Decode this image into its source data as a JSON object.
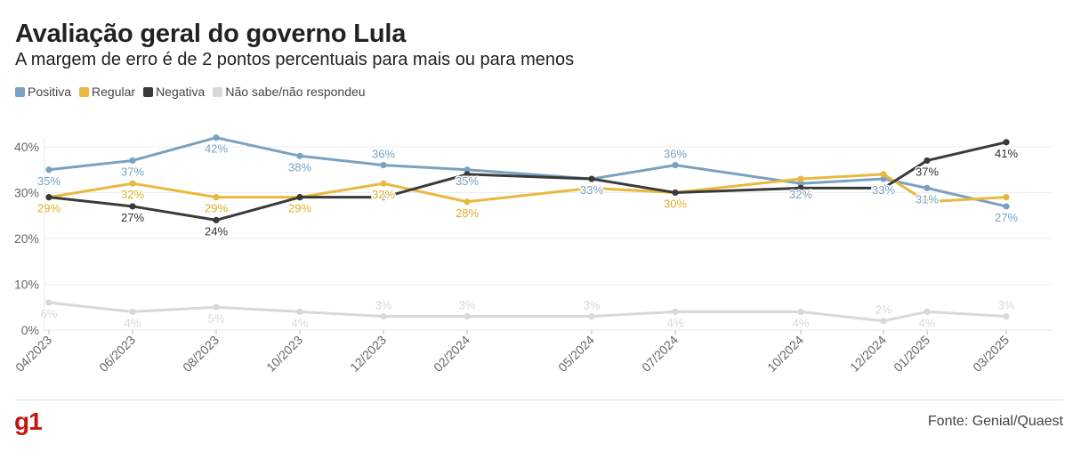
{
  "header": {
    "title": "Avaliação geral do governo Lula",
    "subtitle": "A margem de erro é de 2 pontos percentuais para mais ou para menos"
  },
  "footer": {
    "logo": "g1",
    "source": "Fonte: Genial/Quaest"
  },
  "chart_data": {
    "type": "line",
    "title": "Avaliação geral do governo Lula",
    "subtitle": "A margem de erro é de 2 pontos percentuais para mais ou para menos",
    "xlabel": "",
    "ylabel": "",
    "categories": [
      "04/2023",
      "06/2023",
      "08/2023",
      "10/2023",
      "12/2023",
      "02/2024",
      "05/2024",
      "07/2024",
      "10/2024",
      "12/2024",
      "01/2025",
      "03/2025"
    ],
    "ylim": [
      0,
      40
    ],
    "yticks": [
      "0%",
      "10%",
      "20%",
      "30%",
      "40%"
    ],
    "grid": true,
    "legend_position": "top-left",
    "series": [
      {
        "name": "Positiva",
        "color": "#7aa1bf",
        "values": [
          35,
          37,
          42,
          38,
          36,
          35,
          33,
          36,
          32,
          33,
          31,
          27
        ]
      },
      {
        "name": "Regular",
        "color": "#e8b93e",
        "values": [
          29,
          32,
          29,
          29,
          32,
          28,
          31,
          30,
          33,
          34,
          28,
          29
        ]
      },
      {
        "name": "Negativa",
        "color": "#3a3a3a",
        "values": [
          29,
          27,
          24,
          29,
          29,
          34,
          33,
          30,
          31,
          31,
          37,
          41
        ]
      },
      {
        "name": "Não sabe/não respondeu",
        "color": "#d8d8d8",
        "values": [
          6,
          4,
          5,
          4,
          3,
          3,
          3,
          4,
          4,
          2,
          4,
          3
        ]
      }
    ],
    "data_labels": [
      {
        "series": 0,
        "index": 0,
        "text": "35%",
        "pos": "below"
      },
      {
        "series": 0,
        "index": 1,
        "text": "37%",
        "pos": "below"
      },
      {
        "series": 0,
        "index": 2,
        "text": "42%",
        "pos": "below"
      },
      {
        "series": 0,
        "index": 3,
        "text": "38%",
        "pos": "below"
      },
      {
        "series": 0,
        "index": 4,
        "text": "36%",
        "pos": "above"
      },
      {
        "series": 0,
        "index": 5,
        "text": "35%",
        "pos": "below"
      },
      {
        "series": 0,
        "index": 6,
        "text": "33%",
        "pos": "below"
      },
      {
        "series": 0,
        "index": 7,
        "text": "36%",
        "pos": "above"
      },
      {
        "series": 0,
        "index": 8,
        "text": "32%",
        "pos": "below"
      },
      {
        "series": 0,
        "index": 9,
        "text": "33%",
        "pos": "below"
      },
      {
        "series": 0,
        "index": 10,
        "text": "31%",
        "pos": "below"
      },
      {
        "series": 0,
        "index": 11,
        "text": "27%",
        "pos": "below"
      },
      {
        "series": 1,
        "index": 0,
        "text": "29%",
        "pos": "below"
      },
      {
        "series": 1,
        "index": 1,
        "text": "32%",
        "pos": "below"
      },
      {
        "series": 1,
        "index": 2,
        "text": "29%",
        "pos": "below"
      },
      {
        "series": 1,
        "index": 3,
        "text": "29%",
        "pos": "below"
      },
      {
        "series": 1,
        "index": 4,
        "text": "32%",
        "pos": "below"
      },
      {
        "series": 1,
        "index": 5,
        "text": "28%",
        "pos": "below"
      },
      {
        "series": 1,
        "index": 7,
        "text": "30%",
        "pos": "below"
      },
      {
        "series": 2,
        "index": 1,
        "text": "27%",
        "pos": "below"
      },
      {
        "series": 2,
        "index": 2,
        "text": "24%",
        "pos": "below"
      },
      {
        "series": 2,
        "index": 10,
        "text": "37%",
        "pos": "below"
      },
      {
        "series": 2,
        "index": 11,
        "text": "41%",
        "pos": "below"
      },
      {
        "series": 3,
        "index": 0,
        "text": "6%",
        "pos": "below"
      },
      {
        "series": 3,
        "index": 1,
        "text": "4%",
        "pos": "below"
      },
      {
        "series": 3,
        "index": 2,
        "text": "5%",
        "pos": "below"
      },
      {
        "series": 3,
        "index": 3,
        "text": "4%",
        "pos": "below"
      },
      {
        "series": 3,
        "index": 4,
        "text": "3%",
        "pos": "above"
      },
      {
        "series": 3,
        "index": 5,
        "text": "3%",
        "pos": "above"
      },
      {
        "series": 3,
        "index": 6,
        "text": "3%",
        "pos": "above"
      },
      {
        "series": 3,
        "index": 7,
        "text": "4%",
        "pos": "below"
      },
      {
        "series": 3,
        "index": 8,
        "text": "4%",
        "pos": "below"
      },
      {
        "series": 3,
        "index": 9,
        "text": "2%",
        "pos": "above"
      },
      {
        "series": 3,
        "index": 10,
        "text": "4%",
        "pos": "below"
      },
      {
        "series": 3,
        "index": 11,
        "text": "3%",
        "pos": "above"
      }
    ]
  }
}
